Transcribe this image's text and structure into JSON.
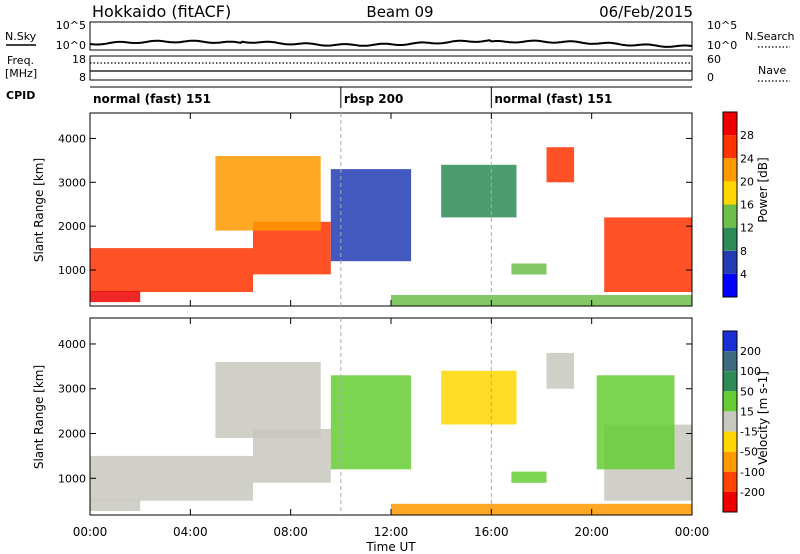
{
  "header": {
    "station": "Hokkaido (fitACF)",
    "beam": "Beam 09",
    "date": "06/Feb/2015"
  },
  "noise_panel": {
    "left_label": "N.Sky",
    "right_label": "N.Search",
    "left_ticks": [
      "10^5",
      "10^0"
    ],
    "right_ticks": [
      "10^5",
      "10^0"
    ]
  },
  "freq_panel": {
    "left_label_1": "Freq.",
    "left_label_2": "[MHz]",
    "right_label": "Nave",
    "left_ticks": [
      "18",
      "8"
    ],
    "right_ticks": [
      "60",
      "0"
    ]
  },
  "cpid": {
    "label": "CPID",
    "segments": [
      {
        "label": "normal (fast) 151",
        "start_hour": 0,
        "end_hour": 10
      },
      {
        "label": "rbsp 200",
        "start_hour": 10,
        "end_hour": 16
      },
      {
        "label": "normal (fast) 151",
        "start_hour": 16,
        "end_hour": 24
      }
    ]
  },
  "power_colorbar": {
    "title": "Power [dB]",
    "ticks": [
      "28",
      "24",
      "20",
      "16",
      "12",
      "8",
      "4"
    ],
    "colors": [
      "#0000ff",
      "#233cb4",
      "#2e8b57",
      "#6cc04a",
      "#ffd700",
      "#ff9900",
      "#ff3300",
      "#ee0000"
    ]
  },
  "velocity_colorbar": {
    "title": "Velocity [m s-1]",
    "ticks": [
      "200",
      "100",
      "50",
      "15",
      "-15",
      "-50",
      "-100",
      "-200"
    ],
    "colors": [
      "#1a2fd6",
      "#3e6a80",
      "#2e8b57",
      "#66cc33",
      "#c8c8c0",
      "#ffd700",
      "#ff9900",
      "#ff4400",
      "#ee0000"
    ]
  },
  "chart_data": {
    "type": "heatmap",
    "xlabel": "Time UT",
    "ylabel": "Slant Range [km]",
    "x_ticks": [
      "00:00",
      "04:00",
      "08:00",
      "12:00",
      "16:00",
      "20:00",
      "00:00"
    ],
    "y_ticks": [
      1000,
      2000,
      3000,
      4000
    ],
    "xlim_hours": [
      0,
      24
    ],
    "ylim_km": [
      180,
      4580
    ],
    "mode_change_hours": [
      10,
      16
    ],
    "panels": [
      {
        "quantity": "Power",
        "unit": "dB",
        "regions": [
          {
            "t0": 0.0,
            "t1": 6.5,
            "r0": 500,
            "r1": 1500,
            "value": 26
          },
          {
            "t0": 6.5,
            "t1": 9.6,
            "r0": 900,
            "r1": 2100,
            "value": 26
          },
          {
            "t0": 0.0,
            "t1": 2.0,
            "r0": 270,
            "r1": 520,
            "value": 28
          },
          {
            "t0": 5.0,
            "t1": 9.2,
            "r0": 1900,
            "r1": 3600,
            "value": 20
          },
          {
            "t0": 9.6,
            "t1": 12.8,
            "r0": 1200,
            "r1": 3300,
            "value": 6
          },
          {
            "t0": 14.0,
            "t1": 17.0,
            "r0": 2200,
            "r1": 3400,
            "value": 8
          },
          {
            "t0": 12.0,
            "t1": 24.0,
            "r0": 190,
            "r1": 430,
            "value": 12
          },
          {
            "t0": 18.2,
            "t1": 19.3,
            "r0": 3000,
            "r1": 3800,
            "value": 24
          },
          {
            "t0": 20.5,
            "t1": 24.0,
            "r0": 500,
            "r1": 2200,
            "value": 27
          },
          {
            "t0": 16.8,
            "t1": 18.2,
            "r0": 900,
            "r1": 1150,
            "value": 12
          }
        ]
      },
      {
        "quantity": "Velocity",
        "unit": "m s-1",
        "regions": [
          {
            "t0": 0.0,
            "t1": 6.5,
            "r0": 500,
            "r1": 1500,
            "value": 0
          },
          {
            "t0": 6.5,
            "t1": 9.6,
            "r0": 900,
            "r1": 2100,
            "value": 0
          },
          {
            "t0": 0.0,
            "t1": 2.0,
            "r0": 270,
            "r1": 520,
            "value": 0
          },
          {
            "t0": 5.0,
            "t1": 9.2,
            "r0": 1900,
            "r1": 3600,
            "value": 0
          },
          {
            "t0": 9.6,
            "t1": 12.8,
            "r0": 1200,
            "r1": 3300,
            "value": 30
          },
          {
            "t0": 14.0,
            "t1": 17.0,
            "r0": 2200,
            "r1": 3400,
            "value": -40
          },
          {
            "t0": 12.0,
            "t1": 24.0,
            "r0": 190,
            "r1": 430,
            "value": -60
          },
          {
            "t0": 18.2,
            "t1": 19.3,
            "r0": 3000,
            "r1": 3800,
            "value": 0
          },
          {
            "t0": 20.5,
            "t1": 24.0,
            "r0": 500,
            "r1": 2200,
            "value": 0
          },
          {
            "t0": 16.8,
            "t1": 18.2,
            "r0": 900,
            "r1": 1150,
            "value": 40
          },
          {
            "t0": 20.2,
            "t1": 23.3,
            "r0": 1200,
            "r1": 3300,
            "value": 30
          }
        ]
      }
    ]
  }
}
